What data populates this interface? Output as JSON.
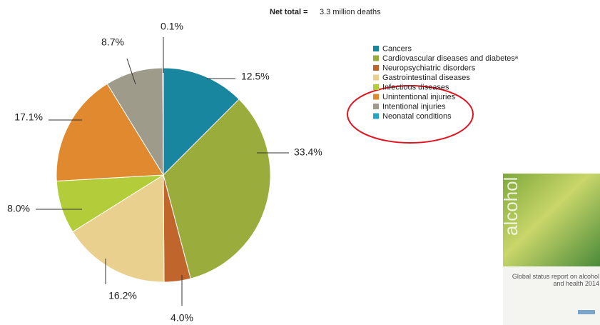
{
  "chart_data": {
    "type": "pie",
    "title": "Net total =",
    "subtitle": "3.3 million deaths",
    "categories": [
      "Cancers",
      "Cardiovascular diseases and diabetesᵃ",
      "Neuropsychiatric disorders",
      "Gastrointestinal diseases",
      "Infectious diseases",
      "Unintentional injuries",
      "Intentional injuries",
      "Neonatal conditions"
    ],
    "values": [
      12.5,
      33.4,
      4.0,
      16.2,
      8.0,
      17.1,
      8.7,
      0.1
    ],
    "value_labels": [
      "12.5%",
      "33.4%",
      "4.0%",
      "16.2%",
      "8.0%",
      "17.1%",
      "8.7%",
      "0.1%"
    ],
    "colors": [
      "#17869e",
      "#9aac3b",
      "#c0652c",
      "#ead08f",
      "#b3cd3a",
      "#e0892e",
      "#9f9b8b",
      "#25a6c2"
    ],
    "legend": "right"
  },
  "book_cover": {
    "title": "alcohol",
    "subtitle": "Global status report on alcohol and health 2014"
  }
}
